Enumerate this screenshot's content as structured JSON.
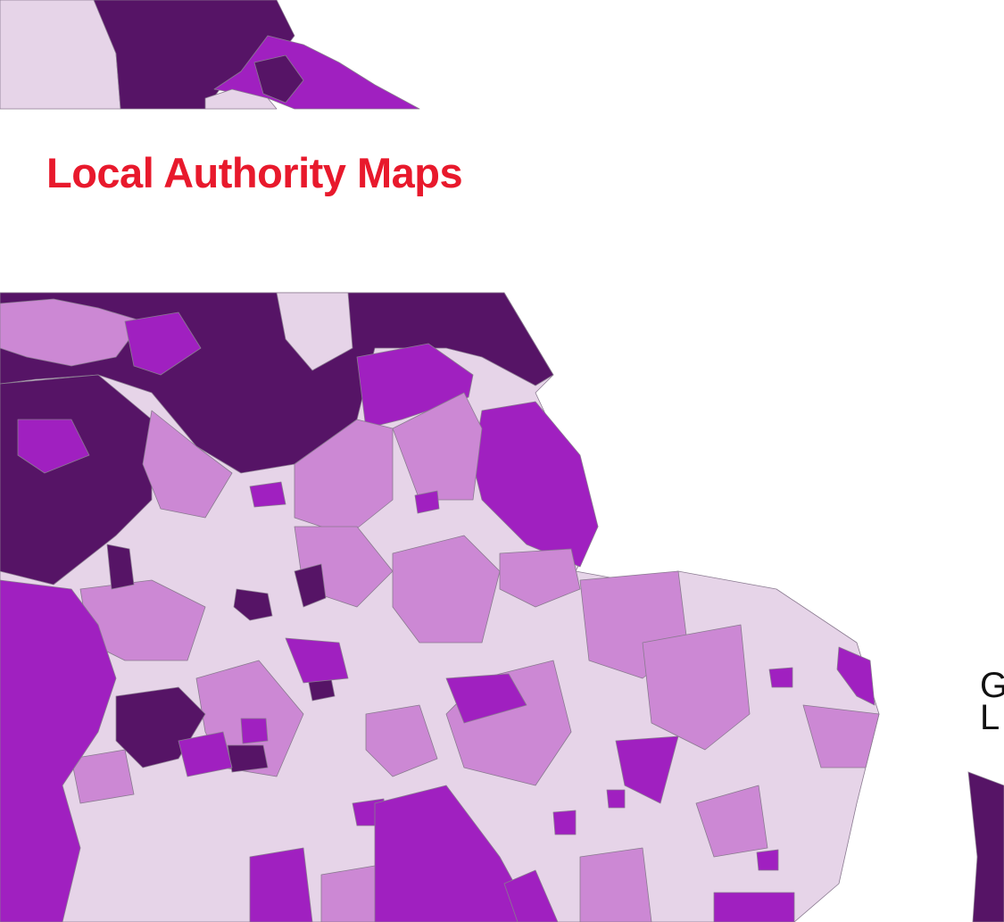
{
  "title": "Local Authority Maps",
  "legend_fragment": {
    "line1": "G",
    "line2": "L"
  }
}
